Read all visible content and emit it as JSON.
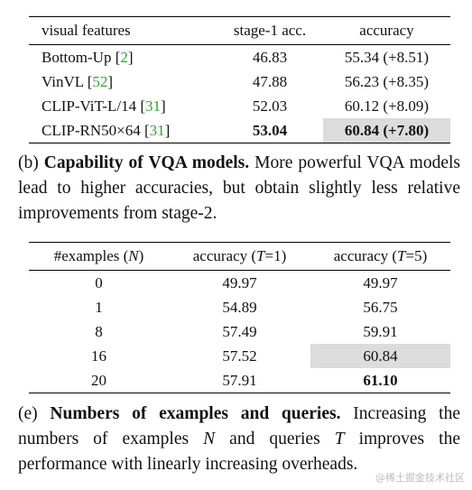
{
  "table_b": {
    "headers": [
      "visual features",
      "stage-1 acc.",
      "accuracy"
    ],
    "rows": [
      {
        "name": "Bottom-Up [",
        "cite": "2",
        "close": "]",
        "stage1": "46.83",
        "acc": "55.34 (+8.51)"
      },
      {
        "name": "VinVL [",
        "cite": "52",
        "close": "]",
        "stage1": "47.88",
        "acc": "56.23 (+8.35)"
      },
      {
        "name": "CLIP-ViT-L/14 [",
        "cite": "31",
        "close": "]",
        "stage1": "52.03",
        "acc": "60.12 (+8.09)"
      },
      {
        "name": "CLIP-RN50×64 [",
        "cite": "31",
        "close": "]",
        "stage1": "53.04",
        "acc": "60.84 (+7.80)"
      }
    ]
  },
  "caption_b": {
    "prefix": "(b) ",
    "lead": "Capability of VQA models.",
    "text": " More powerful VQA models lead to higher accuracies, but obtain slightly less relative improvements from stage-2."
  },
  "table_e": {
    "headers": {
      "col1_a": "#examples (",
      "col1_var": "N",
      "col1_b": ")",
      "col2_a": "accuracy (",
      "col2_var": "T",
      "col2_b": "=1)",
      "col3_a": "accuracy (",
      "col3_var": "T",
      "col3_b": "=5)"
    },
    "rows": [
      {
        "n": "0",
        "t1": "49.97",
        "t5": "49.97"
      },
      {
        "n": "1",
        "t1": "54.89",
        "t5": "56.75"
      },
      {
        "n": "8",
        "t1": "57.49",
        "t5": "59.91"
      },
      {
        "n": "16",
        "t1": "57.52",
        "t5": "60.84"
      },
      {
        "n": "20",
        "t1": "57.91",
        "t5": "61.10"
      }
    ]
  },
  "caption_e": {
    "prefix": "(e) ",
    "lead": "Numbers of examples and queries.",
    "t1": " Increasing the numbers of examples ",
    "var_n": "N",
    "t2": " and queries ",
    "var_t": "T",
    "t3": " improves the performance with linearly increasing overheads."
  },
  "watermark": "@稀土掘金技术社区"
}
